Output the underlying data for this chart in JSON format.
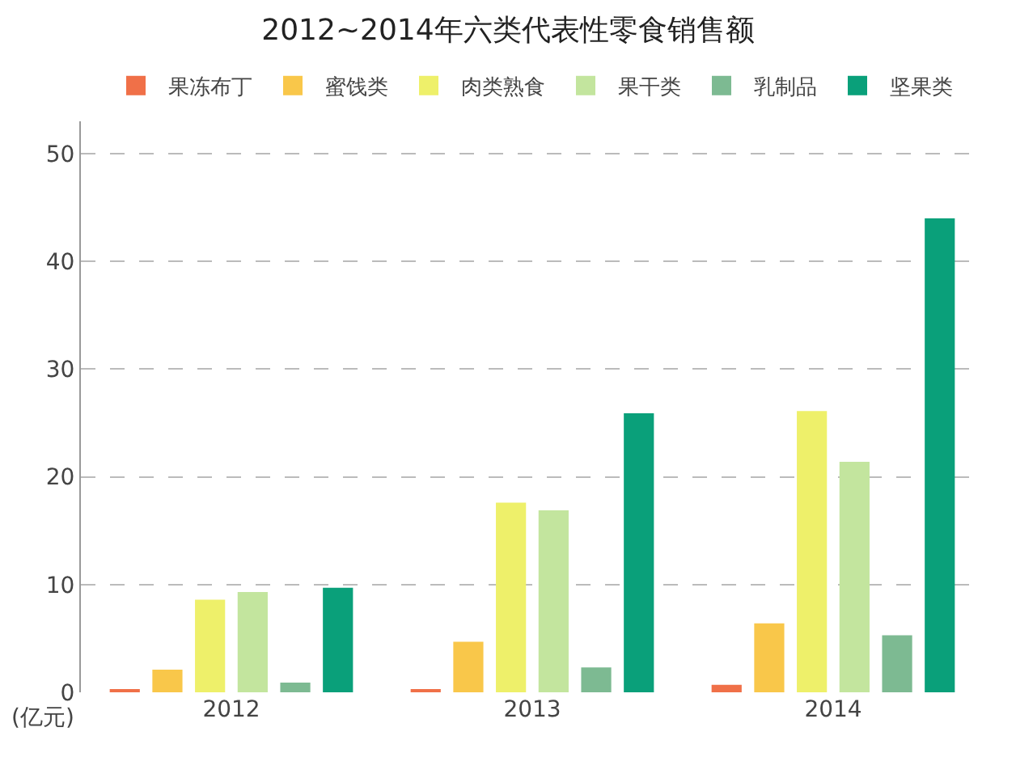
{
  "chart_data": {
    "type": "bar",
    "title": "2012~2014年六类代表性零食销售额",
    "ylabel": "(亿元)",
    "categories": [
      "2012",
      "2013",
      "2014"
    ],
    "series": [
      {
        "name": "果冻布丁",
        "color": "#f07048",
        "values": [
          0.2,
          0.3,
          0.7
        ]
      },
      {
        "name": "蜜饯类",
        "color": "#f9c74a",
        "values": [
          2.1,
          4.7,
          6.4
        ]
      },
      {
        "name": "肉类熟食",
        "color": "#eef06a",
        "values": [
          8.6,
          17.6,
          26.1
        ]
      },
      {
        "name": "果干类",
        "color": "#c3e59e",
        "values": [
          9.3,
          16.9,
          21.4
        ]
      },
      {
        "name": "乳制品",
        "color": "#7dba92",
        "values": [
          0.9,
          2.3,
          5.3
        ]
      },
      {
        "name": "坚果类",
        "color": "#0aa07a",
        "values": [
          9.7,
          25.9,
          44
        ]
      }
    ],
    "ylim": [
      0,
      53
    ],
    "yticks": [
      0,
      10,
      20,
      30,
      40,
      50
    ],
    "grid": "y",
    "legend": "top"
  }
}
